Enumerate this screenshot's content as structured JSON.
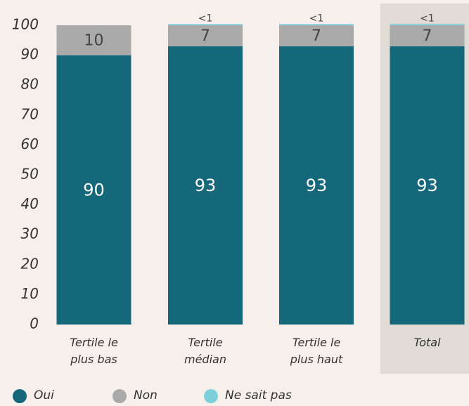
{
  "chart_data": {
    "type": "stacked_bar",
    "categories": [
      "Tertile le\nplus bas",
      "Tertile\nmédian",
      "Tertile le\nplus haut",
      "Total"
    ],
    "series": [
      {
        "name": "Oui",
        "color": "#15677a",
        "values": [
          90,
          93,
          93,
          93
        ]
      },
      {
        "name": "Non",
        "color": "#aaaaaa",
        "values": [
          10,
          7,
          7,
          7
        ]
      },
      {
        "name": "Ne sait pas",
        "color": "#7ecfdc",
        "values": [
          0,
          0.4,
          0.4,
          0.4
        ],
        "value_labels": [
          null,
          "<1",
          "<1",
          "<1"
        ]
      }
    ],
    "ylim": [
      0,
      100
    ],
    "yticks": [
      0,
      10,
      20,
      30,
      40,
      50,
      60,
      70,
      80,
      90,
      100
    ],
    "grid": false,
    "legend": "bottom"
  }
}
